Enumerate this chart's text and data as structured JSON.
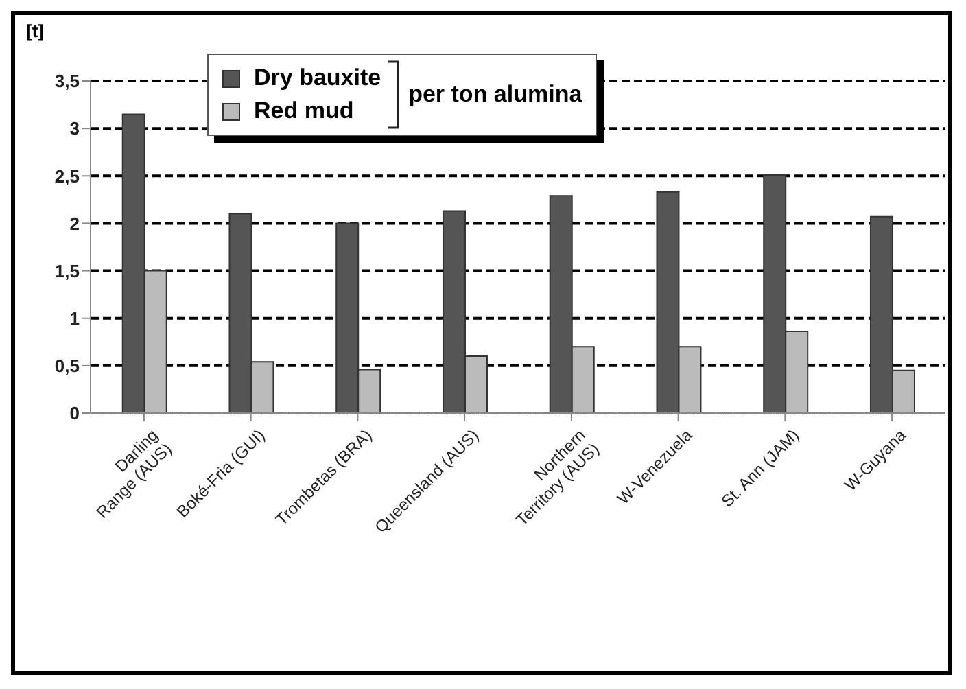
{
  "chart_data": {
    "type": "bar",
    "ylabel": "[t]",
    "legend_title": "per ton alumina",
    "categories": [
      "Darling Range (AUS)",
      "Boké-Fria (GUI)",
      "Trombetas (BRA)",
      "Queensland (AUS)",
      "Northern Territory (AUS)",
      "W-Venezuela",
      "St. Ann (JAM)",
      "W-Guyana"
    ],
    "series": [
      {
        "name": "Dry bauxite",
        "color": "#555555",
        "values": [
          3.15,
          2.1,
          2.0,
          2.13,
          2.29,
          2.33,
          2.51,
          2.07
        ]
      },
      {
        "name": "Red mud",
        "color": "#bbbbbb",
        "values": [
          1.5,
          0.54,
          0.46,
          0.6,
          0.7,
          0.7,
          0.86,
          0.45
        ]
      }
    ],
    "ylim": [
      0,
      3.5
    ],
    "yticks": [
      0,
      {
        "value": 0.5,
        "label": "0,5"
      },
      1,
      {
        "value": 1.5,
        "label": "1,5"
      },
      2,
      {
        "value": 2.5,
        "label": "2,5"
      },
      3,
      {
        "value": 3.5,
        "label": "3,5"
      }
    ],
    "grid": "y",
    "legend": "top left"
  }
}
